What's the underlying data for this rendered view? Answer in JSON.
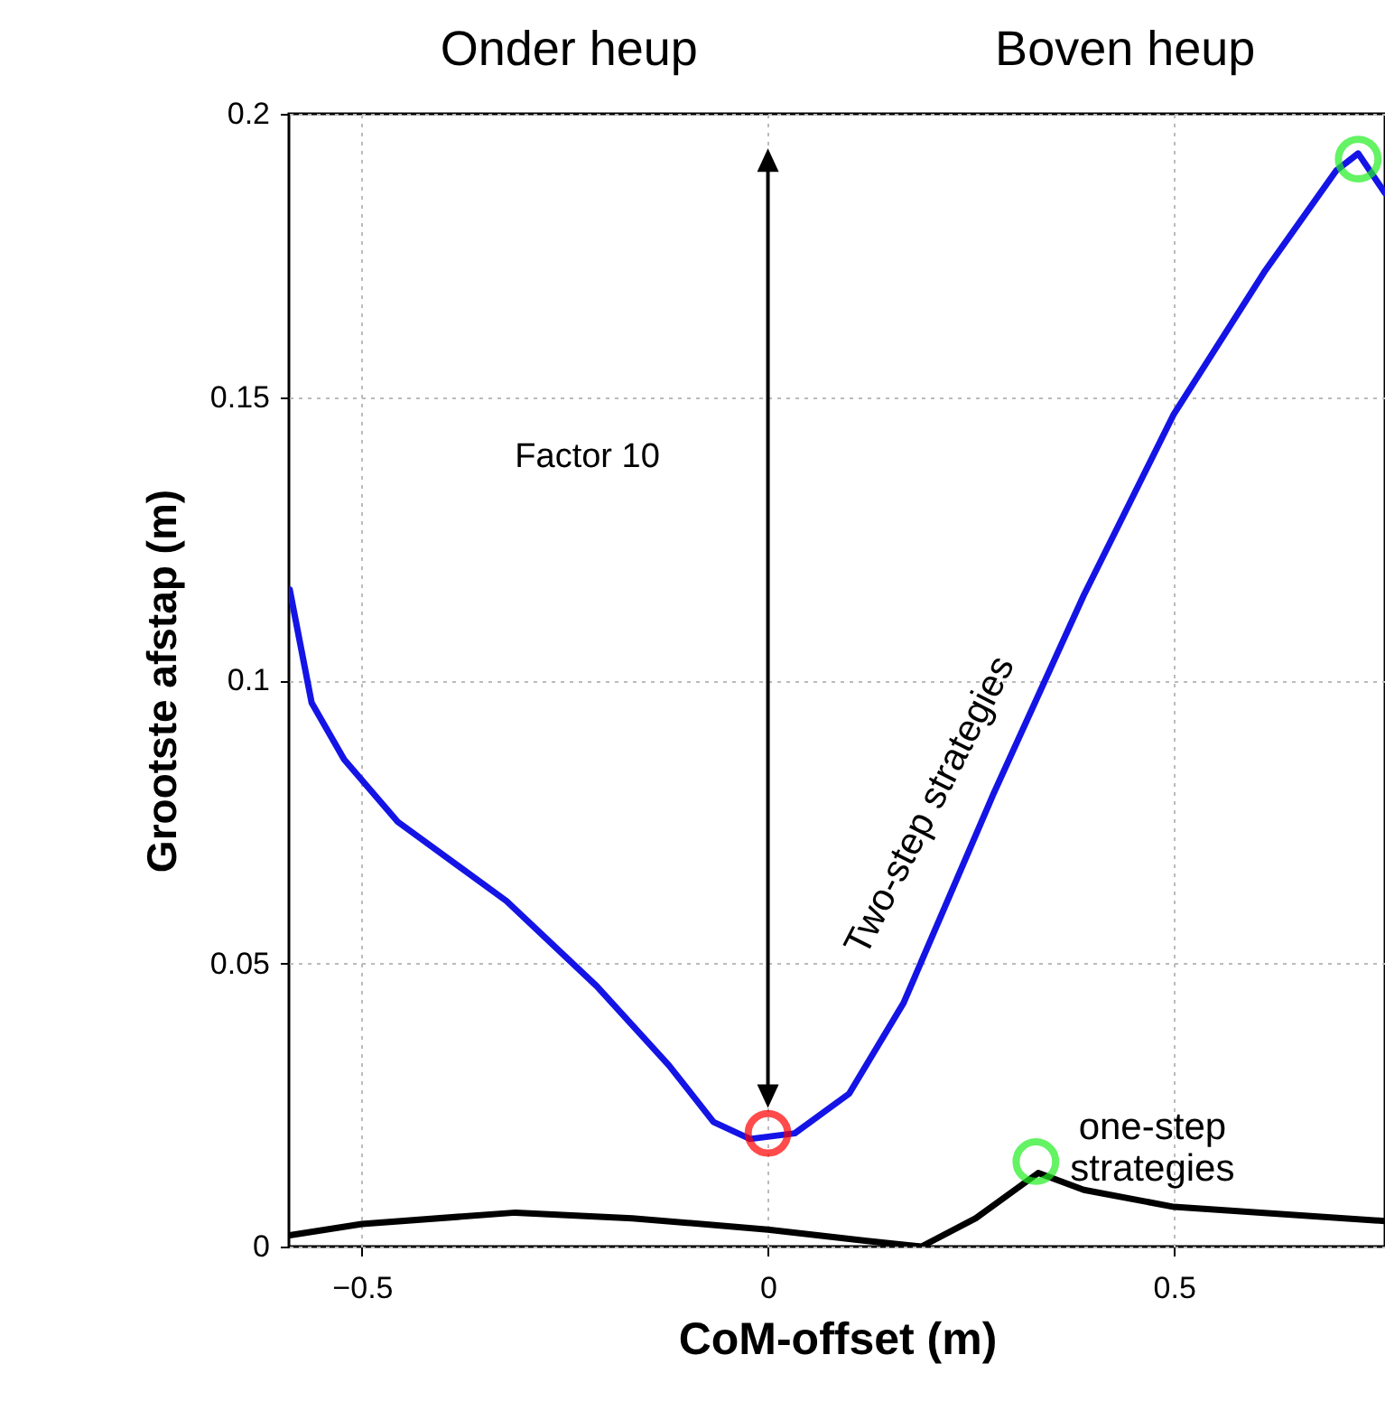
{
  "chart_data": {
    "type": "line",
    "xlabel": "CoM-offset (m)",
    "ylabel": "Grootste afstap (m)",
    "xlim": [
      -0.59,
      0.76
    ],
    "ylim": [
      0,
      0.2
    ],
    "xticks": [
      -0.5,
      0,
      0.5
    ],
    "yticks": [
      0,
      0.05,
      0.1,
      0.15,
      0.2
    ],
    "grid": true,
    "line_style": "solid",
    "annotations": [
      "Onder heup",
      "Boven heup",
      "Factor 10"
    ],
    "series": [
      {
        "name": "Two-step strategies",
        "color": "#1414e6",
        "x": [
          -0.589,
          -0.562,
          -0.522,
          -0.456,
          -0.322,
          -0.211,
          -0.122,
          -0.067,
          -0.022,
          0.033,
          0.1,
          0.167,
          0.278,
          0.389,
          0.5,
          0.611,
          0.7,
          0.727,
          0.76
        ],
        "values": [
          0.116,
          0.096,
          0.086,
          0.075,
          0.061,
          0.046,
          0.032,
          0.022,
          0.019,
          0.02,
          0.027,
          0.043,
          0.08,
          0.115,
          0.147,
          0.172,
          0.19,
          0.193,
          0.186
        ]
      },
      {
        "name": "one-step strategies",
        "color": "#000000",
        "x": [
          -0.589,
          -0.5,
          -0.311,
          -0.167,
          0,
          0.122,
          0.189,
          0.256,
          0.333,
          0.389,
          0.5,
          0.76
        ],
        "values": [
          0.002,
          0.004,
          0.006,
          0.005,
          0.003,
          0.001,
          0,
          0.005,
          0.013,
          0.01,
          0.007,
          0.0045
        ]
      },
      {
        "type": "scatter",
        "marker": "circle",
        "x": [
          0,
          0.33,
          0.727
        ],
        "values": [
          0.02,
          0.015,
          0.192
        ],
        "colors": [
          "#ff0000",
          "#22ee22",
          "#22ee22"
        ]
      }
    ]
  }
}
